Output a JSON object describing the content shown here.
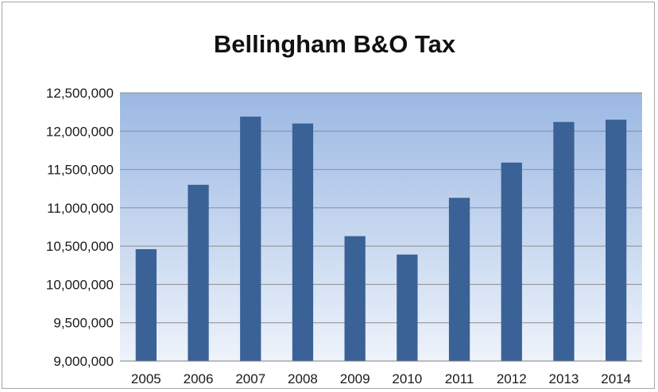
{
  "chart_data": {
    "type": "bar",
    "title": "Bellingham B&O Tax",
    "xlabel": "",
    "ylabel": "",
    "categories": [
      "2005",
      "2006",
      "2007",
      "2008",
      "2009",
      "2010",
      "2011",
      "2012",
      "2013",
      "2014"
    ],
    "values": [
      10460000,
      11300000,
      12190000,
      12100000,
      10630000,
      10390000,
      11130000,
      11590000,
      12120000,
      12150000
    ],
    "ylim": [
      9000000,
      12500000
    ],
    "yticks": [
      9000000,
      9500000,
      10000000,
      10500000,
      11000000,
      11500000,
      12000000,
      12500000
    ],
    "ytick_labels": [
      "9,000,000",
      "9,500,000",
      "10,000,000",
      "10,500,000",
      "11,000,000",
      "11,500,000",
      "12,000,000",
      "12,500,000"
    ],
    "grid": true,
    "legend": "none",
    "colors": {
      "bar": "#3a6297",
      "plot_top": "#9bb8e3",
      "plot_bottom": "#eef3fb",
      "grid": "#8c8c8c"
    }
  }
}
